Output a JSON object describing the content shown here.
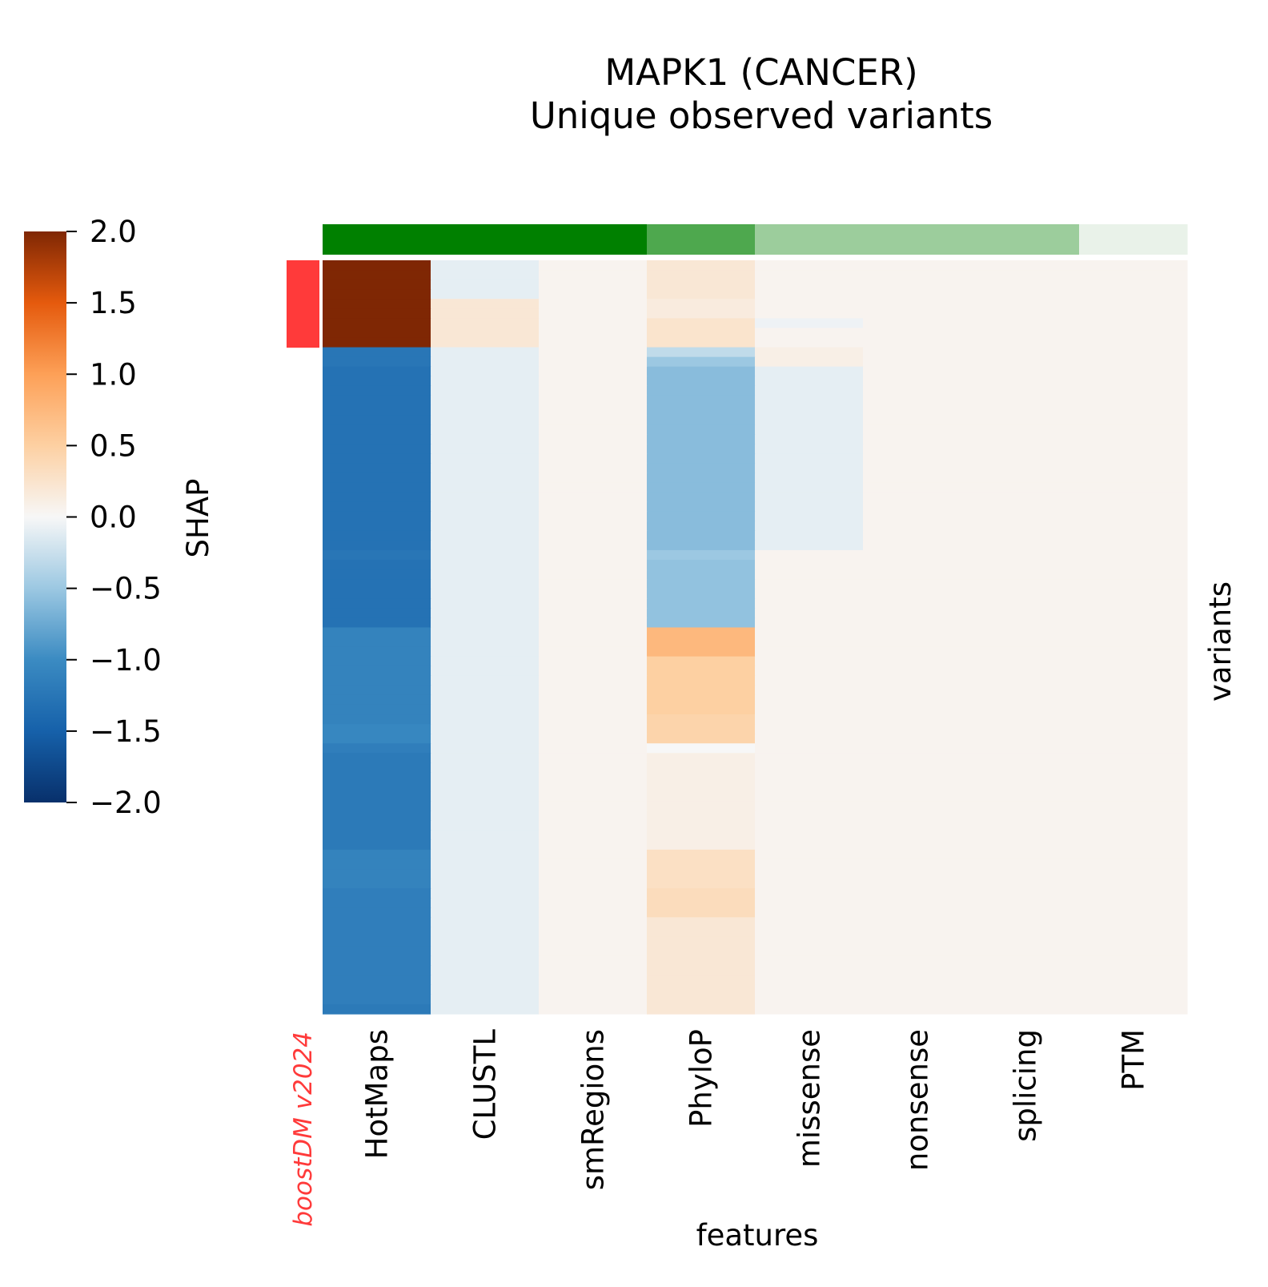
{
  "chart_data": {
    "type": "heatmap",
    "title": "MAPK1 (CANCER)",
    "subtitle": "Unique observed variants",
    "xlabel": "features",
    "ylabel": "variants",
    "model_label": "boostDM v2024",
    "colorbar": {
      "label": "SHAP",
      "range": [
        -2.0,
        2.0
      ],
      "ticks": [
        "2.0",
        "1.5",
        "1.0",
        "0.5",
        "0.0",
        "−0.5",
        "−1.0",
        "−1.5",
        "−2.0"
      ],
      "colormap": "diverging blue-white-orange"
    },
    "features": [
      "HotMaps",
      "CLUSTL",
      "smRegions",
      "PhyloP",
      "missense",
      "nonsense",
      "splicing",
      "PTM"
    ],
    "feature_group_colors": [
      "#008000",
      "#008000",
      "#008000",
      "#4ea84e",
      "#9ccd9c",
      "#9ccd9c",
      "#9ccd9c",
      "#e9f2e9"
    ],
    "variants": {
      "count": 78,
      "driver_flags": [
        1,
        1,
        1,
        1,
        1,
        1,
        1,
        1,
        1,
        0,
        0,
        0,
        0,
        0,
        0,
        0,
        0,
        0,
        0,
        0,
        0,
        0,
        0,
        0,
        0,
        0,
        0,
        0,
        0,
        0,
        0,
        0,
        0,
        0,
        0,
        0,
        0,
        0,
        0,
        0,
        0,
        0,
        0,
        0,
        0,
        0,
        0,
        0,
        0,
        0,
        0,
        0,
        0,
        0,
        0,
        0,
        0,
        0,
        0,
        0,
        0,
        0,
        0,
        0,
        0,
        0,
        0,
        0,
        0,
        0,
        0,
        0,
        0,
        0,
        0,
        0,
        0,
        0
      ],
      "driver_color": "#ff3a3a",
      "shap_matrix": [
        [
          2.0,
          -0.1,
          0.05,
          0.2,
          0.05,
          0.05,
          0.05,
          0.05
        ],
        [
          2.0,
          -0.1,
          0.05,
          0.2,
          0.05,
          0.05,
          0.05,
          0.05
        ],
        [
          2.0,
          -0.1,
          0.05,
          0.2,
          0.05,
          0.05,
          0.05,
          0.05
        ],
        [
          2.0,
          -0.1,
          0.05,
          0.2,
          0.05,
          0.05,
          0.05,
          0.05
        ],
        [
          2.0,
          0.2,
          0.05,
          0.15,
          0.05,
          0.05,
          0.05,
          0.05
        ],
        [
          2.0,
          0.2,
          0.05,
          0.15,
          0.05,
          0.05,
          0.05,
          0.05
        ],
        [
          2.0,
          0.2,
          0.05,
          0.25,
          -0.05,
          0.05,
          0.05,
          0.05
        ],
        [
          2.0,
          0.2,
          0.05,
          0.25,
          0.05,
          0.05,
          0.05,
          0.05
        ],
        [
          2.0,
          0.2,
          0.05,
          0.25,
          0.05,
          0.05,
          0.05,
          0.05
        ],
        [
          -1.25,
          -0.1,
          0.05,
          -0.3,
          0.1,
          0.05,
          0.05,
          0.05
        ],
        [
          -1.25,
          -0.1,
          0.05,
          -0.5,
          0.1,
          0.05,
          0.05,
          0.05
        ],
        [
          -1.3,
          -0.1,
          0.05,
          -0.6,
          -0.1,
          0.05,
          0.05,
          0.05
        ],
        [
          -1.3,
          -0.1,
          0.05,
          -0.6,
          -0.1,
          0.05,
          0.05,
          0.05
        ],
        [
          -1.3,
          -0.1,
          0.05,
          -0.6,
          -0.1,
          0.05,
          0.05,
          0.05
        ],
        [
          -1.3,
          -0.1,
          0.05,
          -0.6,
          -0.1,
          0.05,
          0.05,
          0.05
        ],
        [
          -1.3,
          -0.1,
          0.05,
          -0.6,
          -0.1,
          0.05,
          0.05,
          0.05
        ],
        [
          -1.3,
          -0.1,
          0.05,
          -0.6,
          -0.1,
          0.05,
          0.05,
          0.05
        ],
        [
          -1.3,
          -0.1,
          0.05,
          -0.6,
          -0.1,
          0.05,
          0.05,
          0.05
        ],
        [
          -1.3,
          -0.1,
          0.05,
          -0.6,
          -0.1,
          0.05,
          0.05,
          0.05
        ],
        [
          -1.3,
          -0.1,
          0.05,
          -0.6,
          -0.1,
          0.05,
          0.05,
          0.05
        ],
        [
          -1.3,
          -0.1,
          0.05,
          -0.6,
          -0.1,
          0.05,
          0.05,
          0.05
        ],
        [
          -1.3,
          -0.1,
          0.05,
          -0.6,
          -0.1,
          0.05,
          0.05,
          0.05
        ],
        [
          -1.3,
          -0.1,
          0.05,
          -0.6,
          -0.1,
          0.05,
          0.05,
          0.05
        ],
        [
          -1.3,
          -0.1,
          0.05,
          -0.6,
          -0.1,
          0.05,
          0.05,
          0.05
        ],
        [
          -1.3,
          -0.1,
          0.05,
          -0.6,
          -0.1,
          0.05,
          0.05,
          0.05
        ],
        [
          -1.3,
          -0.1,
          0.05,
          -0.6,
          -0.1,
          0.05,
          0.05,
          0.05
        ],
        [
          -1.3,
          -0.1,
          0.05,
          -0.6,
          -0.1,
          0.05,
          0.05,
          0.05
        ],
        [
          -1.3,
          -0.1,
          0.05,
          -0.6,
          -0.1,
          0.05,
          0.05,
          0.05
        ],
        [
          -1.3,
          -0.1,
          0.05,
          -0.6,
          -0.1,
          0.05,
          0.05,
          0.05
        ],
        [
          -1.3,
          -0.1,
          0.05,
          -0.6,
          -0.1,
          0.05,
          0.05,
          0.05
        ],
        [
          -1.25,
          -0.1,
          0.05,
          -0.5,
          0.05,
          0.05,
          0.05,
          0.05
        ],
        [
          -1.3,
          -0.1,
          0.05,
          -0.55,
          0.05,
          0.05,
          0.05,
          0.05
        ],
        [
          -1.3,
          -0.1,
          0.05,
          -0.55,
          0.05,
          0.05,
          0.05,
          0.05
        ],
        [
          -1.3,
          -0.1,
          0.05,
          -0.55,
          0.05,
          0.05,
          0.05,
          0.05
        ],
        [
          -1.3,
          -0.1,
          0.05,
          -0.55,
          0.05,
          0.05,
          0.05,
          0.05
        ],
        [
          -1.3,
          -0.1,
          0.05,
          -0.55,
          0.05,
          0.05,
          0.05,
          0.05
        ],
        [
          -1.3,
          -0.1,
          0.05,
          -0.55,
          0.05,
          0.05,
          0.05,
          0.05
        ],
        [
          -1.3,
          -0.1,
          0.05,
          -0.55,
          0.05,
          0.05,
          0.05,
          0.05
        ],
        [
          -1.1,
          -0.1,
          0.05,
          0.75,
          0.05,
          0.05,
          0.05,
          0.05
        ],
        [
          -1.1,
          -0.1,
          0.05,
          0.75,
          0.05,
          0.05,
          0.05,
          0.05
        ],
        [
          -1.1,
          -0.1,
          0.05,
          0.75,
          0.05,
          0.05,
          0.05,
          0.05
        ],
        [
          -1.1,
          -0.1,
          0.05,
          0.5,
          0.05,
          0.05,
          0.05,
          0.05
        ],
        [
          -1.1,
          -0.1,
          0.05,
          0.5,
          0.05,
          0.05,
          0.05,
          0.05
        ],
        [
          -1.1,
          -0.1,
          0.05,
          0.5,
          0.05,
          0.05,
          0.05,
          0.05
        ],
        [
          -1.1,
          -0.1,
          0.05,
          0.5,
          0.05,
          0.05,
          0.05,
          0.05
        ],
        [
          -1.1,
          -0.1,
          0.05,
          0.5,
          0.05,
          0.05,
          0.05,
          0.05
        ],
        [
          -1.1,
          -0.1,
          0.05,
          0.5,
          0.05,
          0.05,
          0.05,
          0.05
        ],
        [
          -1.1,
          -0.1,
          0.05,
          0.45,
          0.05,
          0.05,
          0.05,
          0.05
        ],
        [
          -1.05,
          -0.1,
          0.05,
          0.45,
          0.05,
          0.05,
          0.05,
          0.05
        ],
        [
          -1.05,
          -0.1,
          0.05,
          0.45,
          0.05,
          0.05,
          0.05,
          0.05
        ],
        [
          -1.15,
          -0.1,
          0.05,
          0.0,
          0.05,
          0.05,
          0.05,
          0.05
        ],
        [
          -1.2,
          -0.1,
          0.05,
          0.1,
          0.05,
          0.05,
          0.05,
          0.05
        ],
        [
          -1.2,
          -0.1,
          0.05,
          0.1,
          0.05,
          0.05,
          0.05,
          0.05
        ],
        [
          -1.2,
          -0.1,
          0.05,
          0.1,
          0.05,
          0.05,
          0.05,
          0.05
        ],
        [
          -1.2,
          -0.1,
          0.05,
          0.1,
          0.05,
          0.05,
          0.05,
          0.05
        ],
        [
          -1.2,
          -0.1,
          0.05,
          0.1,
          0.05,
          0.05,
          0.05,
          0.05
        ],
        [
          -1.2,
          -0.1,
          0.05,
          0.1,
          0.05,
          0.05,
          0.05,
          0.05
        ],
        [
          -1.2,
          -0.1,
          0.05,
          0.1,
          0.05,
          0.05,
          0.05,
          0.05
        ],
        [
          -1.2,
          -0.1,
          0.05,
          0.1,
          0.05,
          0.05,
          0.05,
          0.05
        ],
        [
          -1.2,
          -0.1,
          0.05,
          0.1,
          0.05,
          0.05,
          0.05,
          0.05
        ],
        [
          -1.2,
          -0.1,
          0.05,
          0.1,
          0.05,
          0.05,
          0.05,
          0.05
        ],
        [
          -1.1,
          -0.1,
          0.05,
          0.3,
          0.05,
          0.05,
          0.05,
          0.05
        ],
        [
          -1.1,
          -0.1,
          0.05,
          0.3,
          0.05,
          0.05,
          0.05,
          0.05
        ],
        [
          -1.1,
          -0.1,
          0.05,
          0.3,
          0.05,
          0.05,
          0.05,
          0.05
        ],
        [
          -1.1,
          -0.1,
          0.05,
          0.3,
          0.05,
          0.05,
          0.05,
          0.05
        ],
        [
          -1.15,
          -0.1,
          0.05,
          0.35,
          0.05,
          0.05,
          0.05,
          0.05
        ],
        [
          -1.15,
          -0.1,
          0.05,
          0.35,
          0.05,
          0.05,
          0.05,
          0.05
        ],
        [
          -1.15,
          -0.1,
          0.05,
          0.35,
          0.05,
          0.05,
          0.05,
          0.05
        ],
        [
          -1.15,
          -0.1,
          0.05,
          0.2,
          0.05,
          0.05,
          0.05,
          0.05
        ],
        [
          -1.15,
          -0.1,
          0.05,
          0.2,
          0.05,
          0.05,
          0.05,
          0.05
        ],
        [
          -1.15,
          -0.1,
          0.05,
          0.2,
          0.05,
          0.05,
          0.05,
          0.05
        ],
        [
          -1.15,
          -0.1,
          0.05,
          0.2,
          0.05,
          0.05,
          0.05,
          0.05
        ],
        [
          -1.15,
          -0.1,
          0.05,
          0.2,
          0.05,
          0.05,
          0.05,
          0.05
        ],
        [
          -1.15,
          -0.1,
          0.05,
          0.2,
          0.05,
          0.05,
          0.05,
          0.05
        ],
        [
          -1.15,
          -0.1,
          0.05,
          0.2,
          0.05,
          0.05,
          0.05,
          0.05
        ],
        [
          -1.15,
          -0.1,
          0.05,
          0.2,
          0.05,
          0.05,
          0.05,
          0.05
        ],
        [
          -1.15,
          -0.1,
          0.05,
          0.2,
          0.05,
          0.05,
          0.05,
          0.05
        ],
        [
          -1.2,
          -0.1,
          0.05,
          0.2,
          0.05,
          0.05,
          0.05,
          0.05
        ]
      ]
    }
  }
}
